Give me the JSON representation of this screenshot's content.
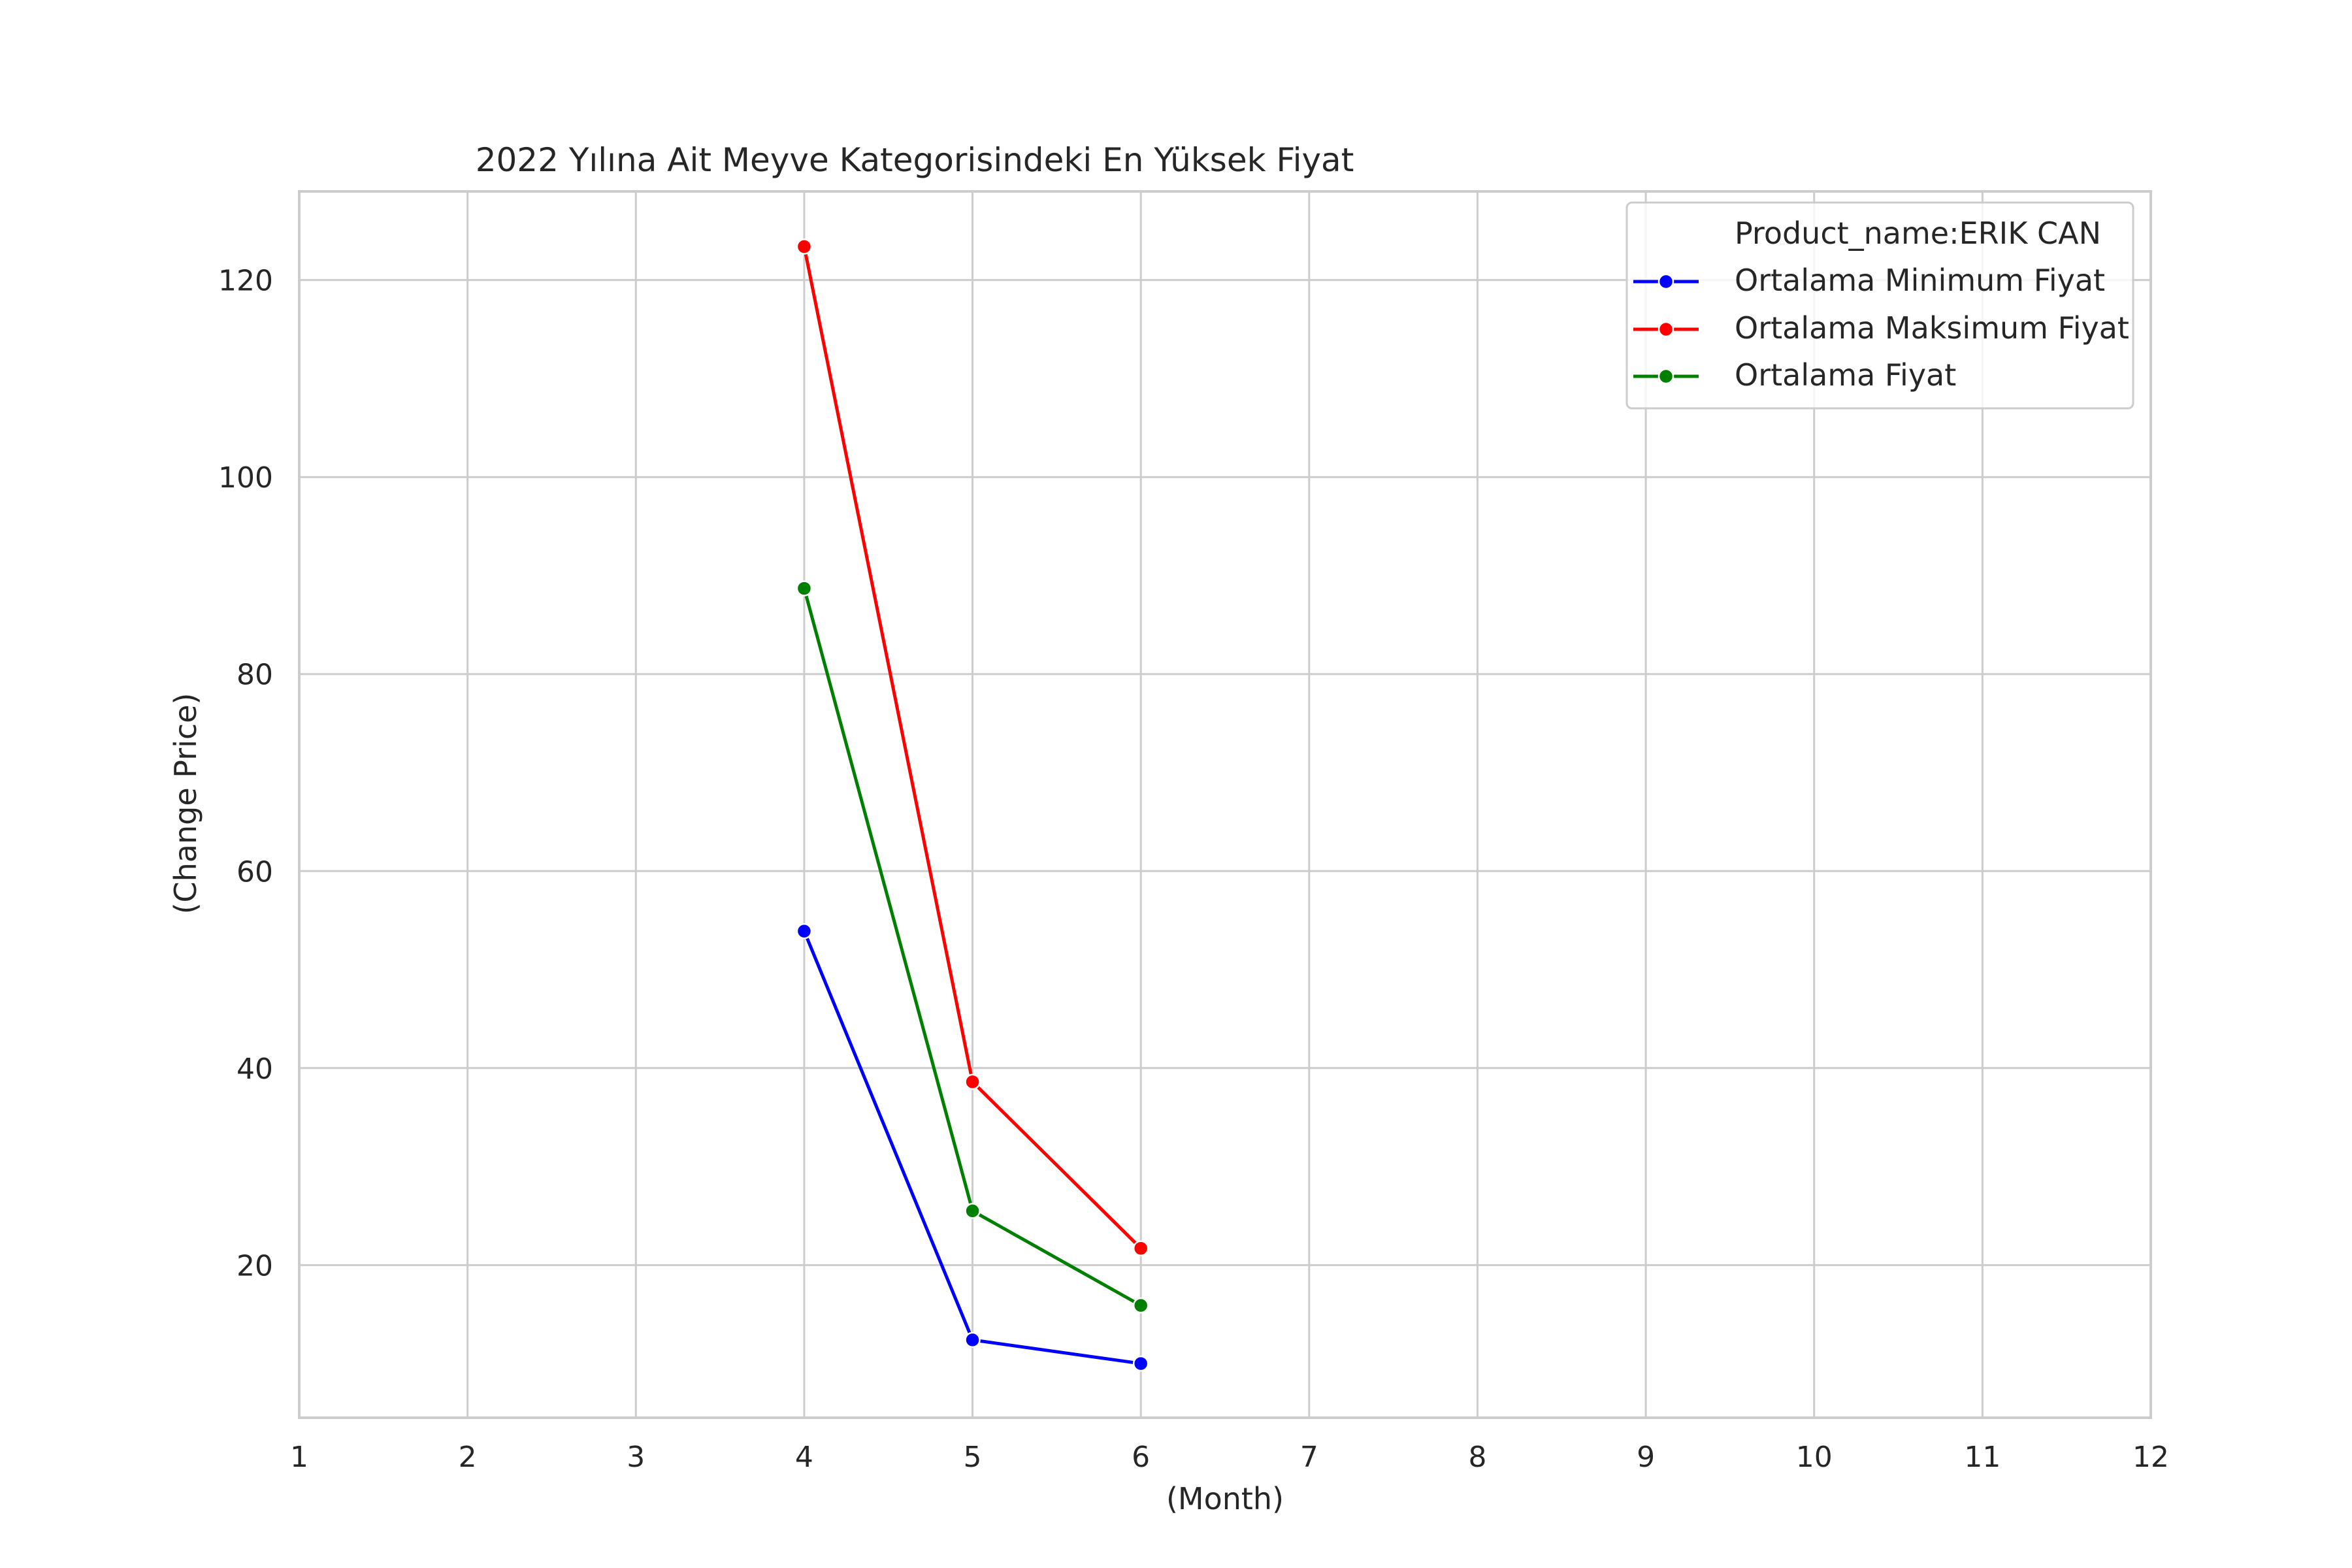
{
  "chart_data": {
    "type": "line",
    "title": "2022 Yılına Ait Meyve Kategorisindeki En Yüksek Fiyat",
    "xlabel": "(Month)",
    "ylabel": "(Change Price)",
    "xlim": [
      1,
      12
    ],
    "ylim": [
      4.5,
      129
    ],
    "x_ticks": [
      1,
      2,
      3,
      4,
      5,
      6,
      7,
      8,
      9,
      10,
      11,
      12
    ],
    "y_ticks": [
      20,
      40,
      60,
      80,
      100,
      120
    ],
    "grid": true,
    "legend": {
      "title": "Product_name:ERIK CAN",
      "placement": "top-right"
    },
    "series": [
      {
        "name": "Ortalama Minimum Fiyat",
        "color": "#0000ff",
        "x": [
          4,
          5,
          6
        ],
        "y": [
          53.9,
          12.4,
          10.0
        ]
      },
      {
        "name": "Ortalama Maksimum Fiyat",
        "color": "#ff0000",
        "x": [
          4,
          5,
          6
        ],
        "y": [
          123.4,
          38.6,
          21.7
        ]
      },
      {
        "name": "Ortalama Fiyat",
        "color": "#008000",
        "x": [
          4,
          5,
          6
        ],
        "y": [
          88.7,
          25.5,
          15.9
        ]
      }
    ]
  }
}
